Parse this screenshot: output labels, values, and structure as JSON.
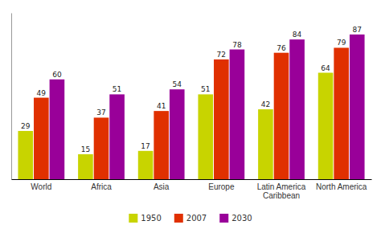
{
  "chart_data": {
    "type": "bar",
    "categories": [
      "World",
      "Africa",
      "Asia",
      "Europe",
      "Latin America\nCaribbean",
      "North America"
    ],
    "series": [
      {
        "name": "1950",
        "color": "#c8d400",
        "values": [
          29,
          15,
          17,
          51,
          42,
          64
        ]
      },
      {
        "name": "2007",
        "color": "#e03000",
        "values": [
          49,
          37,
          41,
          72,
          76,
          79
        ]
      },
      {
        "name": "2030",
        "color": "#990099",
        "values": [
          60,
          51,
          54,
          78,
          84,
          87
        ]
      }
    ],
    "ylim": [
      0,
      100
    ],
    "data_labels": true,
    "tick_labels": "x",
    "grid": false,
    "legend": "bottom"
  }
}
